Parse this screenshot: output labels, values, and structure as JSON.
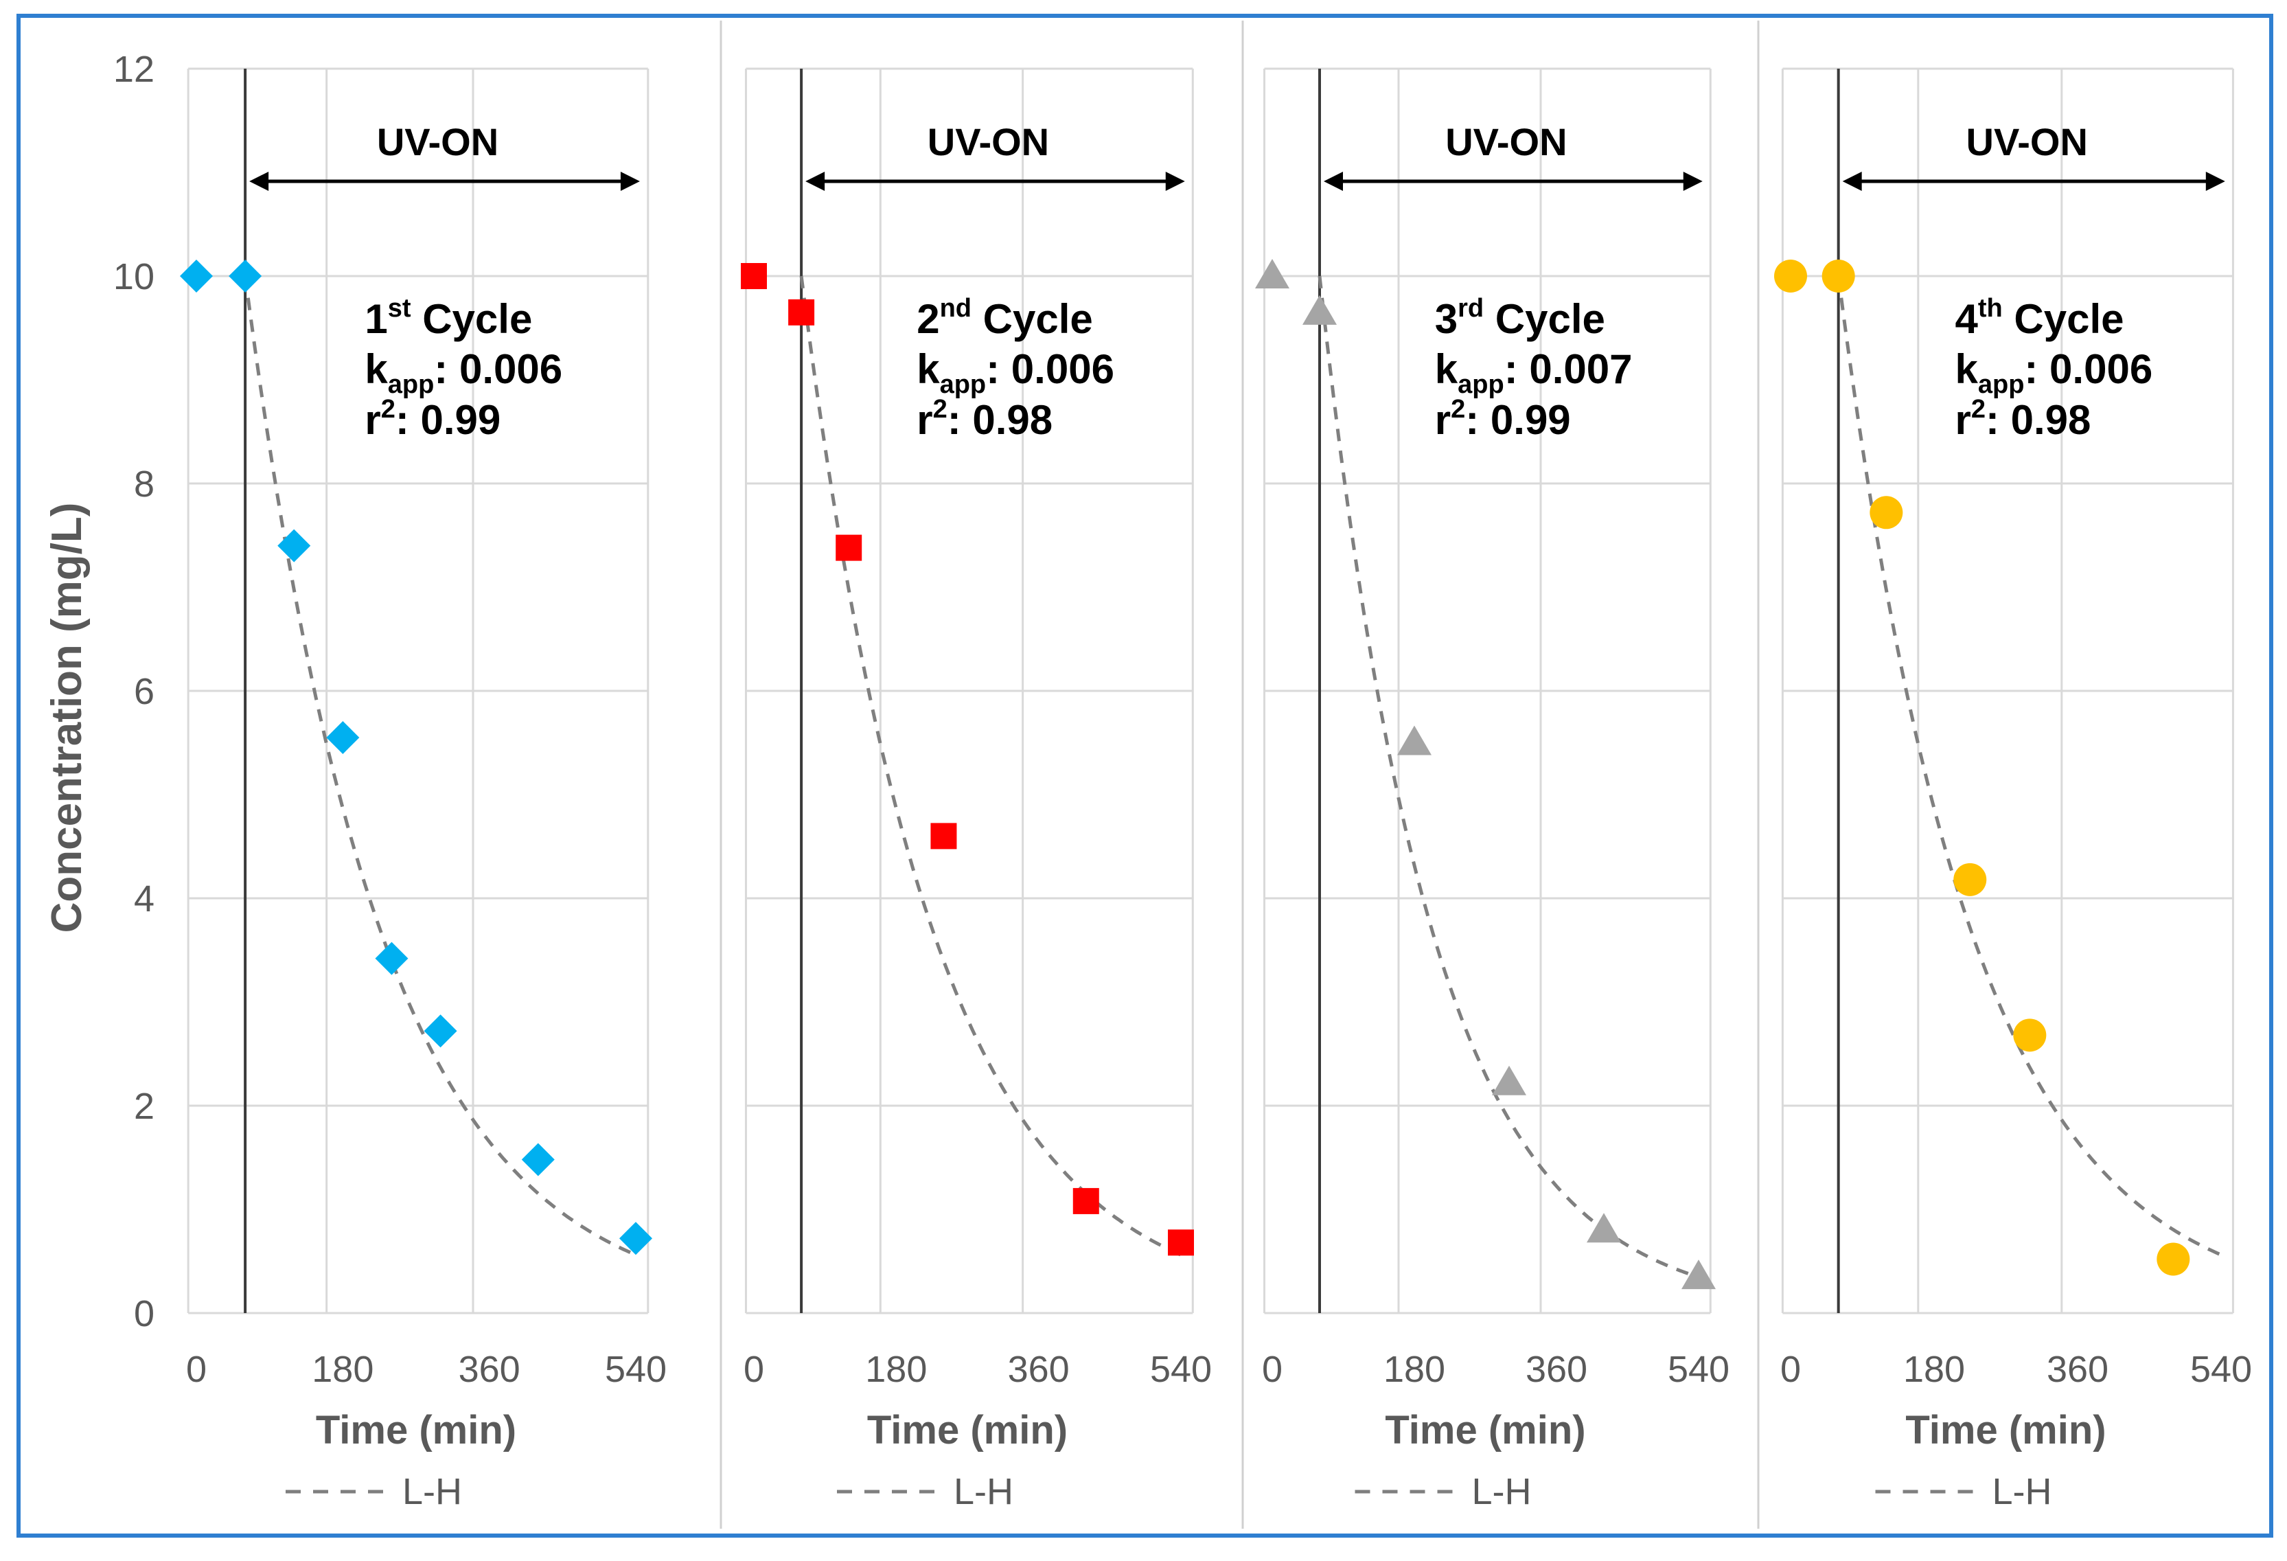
{
  "chart_data": {
    "type": "scatter",
    "ylabel": "Concentration (mg/L)",
    "ylim": [
      0,
      12
    ],
    "yticks": [
      0,
      2,
      4,
      6,
      8,
      10,
      12
    ],
    "xlim": [
      -10,
      555
    ],
    "xticks": [
      0,
      180,
      360,
      540
    ],
    "xlabel": "Time (min)",
    "uv_label": "UV-ON",
    "uv_start": 60,
    "legend_label": "L-H",
    "panels": [
      {
        "name": "cycle-1",
        "cycle_main": "1",
        "cycle_sup": "st",
        "cycle_word": "Cycle",
        "kapp_label": "k",
        "kapp_sub": "app",
        "kapp_value": ": 0.006",
        "r2_label": "r",
        "r2_sup": "2",
        "r2_value": ": 0.99",
        "marker": "diamond",
        "color": "#00b0f0",
        "x": [
          0,
          60,
          120,
          180,
          240,
          300,
          420,
          540
        ],
        "y": [
          10,
          10,
          7.4,
          5.55,
          3.42,
          2.72,
          1.48,
          0.72
        ],
        "fit_k": 0.006
      },
      {
        "name": "cycle-2",
        "cycle_main": "2",
        "cycle_sup": "nd",
        "cycle_word": "Cycle",
        "kapp_label": "k",
        "kapp_sub": "app",
        "kapp_value": ": 0.006",
        "r2_label": "r",
        "r2_sup": "2",
        "r2_value": ": 0.98",
        "marker": "square",
        "color": "#ff0000",
        "x": [
          0,
          60,
          120,
          240,
          420,
          540
        ],
        "y": [
          10,
          9.65,
          7.38,
          4.6,
          1.08,
          0.68
        ],
        "fit_k": 0.006
      },
      {
        "name": "cycle-3",
        "cycle_main": "3",
        "cycle_sup": "rd",
        "cycle_word": "Cycle",
        "kapp_label": "k",
        "kapp_sub": "app",
        "kapp_value": ": 0.007",
        "r2_label": "r",
        "r2_sup": "2",
        "r2_value": ": 0.99",
        "marker": "triangle",
        "color": "#a5a5a5",
        "x": [
          0,
          60,
          180,
          300,
          420,
          540
        ],
        "y": [
          10,
          9.65,
          5.5,
          2.22,
          0.8,
          0.35
        ],
        "fit_k": 0.007
      },
      {
        "name": "cycle-4",
        "cycle_main": "4",
        "cycle_sup": "th",
        "cycle_word": "Cycle",
        "kapp_label": "k",
        "kapp_sub": "app",
        "kapp_value": ": 0.006",
        "r2_label": "r",
        "r2_sup": "2",
        "r2_value": ": 0.98",
        "marker": "circle",
        "color": "#ffc000",
        "x": [
          0,
          60,
          120,
          225,
          300,
          480
        ],
        "y": [
          10,
          10,
          7.72,
          4.18,
          2.68,
          0.52
        ],
        "fit_k": 0.006
      }
    ]
  }
}
